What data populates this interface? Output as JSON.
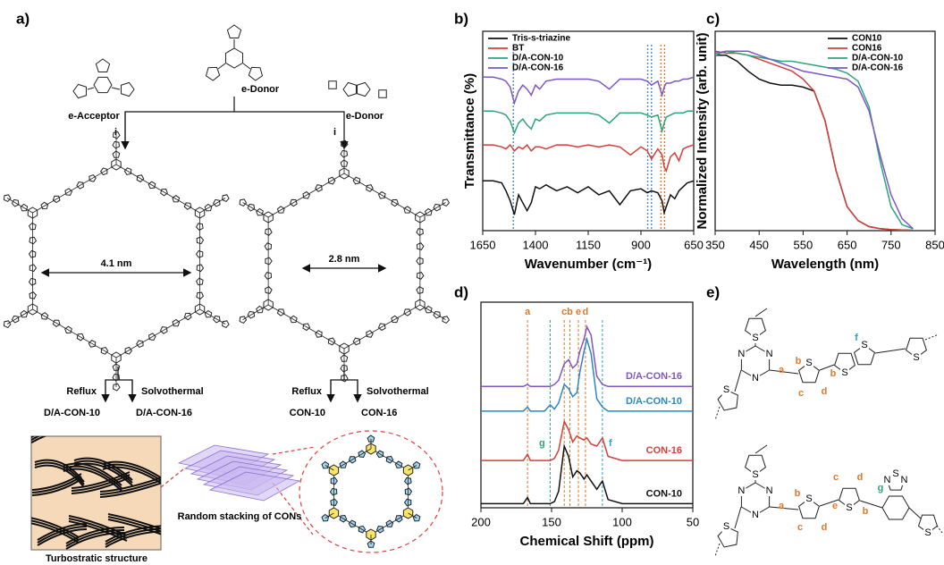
{
  "panels": {
    "a": "a)",
    "b": "b)",
    "c": "c)",
    "d": "d)",
    "e": "e)"
  },
  "scheme": {
    "acceptor": "e-Acceptor",
    "donor_center": "e-Donor",
    "donor_right": "e-Donor",
    "step_left": "i",
    "step_right": "i",
    "pore_left": "4.1 nm",
    "pore_right": "2.8 nm",
    "left_conditions": [
      "Reflux",
      "Solvothermal"
    ],
    "left_products": [
      "D/A-CON-10",
      "D/A-CON-16"
    ],
    "right_conditions": [
      "Reflux",
      "Solvothermal"
    ],
    "right_products": [
      "CON-10",
      "CON-16"
    ],
    "stacking": "Random stacking of CONs",
    "turbostratic": "Turbostratic structure"
  },
  "chart_data": [
    {
      "type": "line",
      "xlabel": "Wavenumber (cm⁻¹)",
      "ylabel": "Transmittance (%)",
      "xlim": [
        1650,
        650
      ],
      "xticks": [
        1650,
        1400,
        1150,
        900,
        650
      ],
      "ylim": [
        0,
        100
      ],
      "legend": "upper left",
      "x": [
        1650,
        1600,
        1560,
        1540,
        1520,
        1500,
        1480,
        1460,
        1440,
        1420,
        1400,
        1380,
        1350,
        1300,
        1250,
        1200,
        1150,
        1100,
        1050,
        1000,
        950,
        900,
        870,
        850,
        820,
        800,
        790,
        780,
        760,
        740,
        720,
        700,
        680,
        650
      ],
      "series": [
        {
          "name": "Tris-s-triazine",
          "color": "#111111",
          "values": [
            25,
            25,
            24,
            20,
            15,
            8,
            18,
            14,
            10,
            14,
            22,
            21,
            23,
            20,
            22,
            19,
            22,
            18,
            20,
            13,
            20,
            21,
            19,
            20,
            19,
            15,
            9,
            12,
            18,
            16,
            20,
            22,
            24,
            25
          ]
        },
        {
          "name": "BT",
          "color": "#d43f3a",
          "values": [
            43,
            43,
            42,
            41,
            43,
            40,
            42,
            41,
            43,
            40,
            42,
            42,
            41,
            43,
            43,
            42,
            43,
            42,
            43,
            42,
            38,
            42,
            40,
            36,
            41,
            38,
            32,
            30,
            37,
            39,
            35,
            41,
            42,
            43
          ]
        },
        {
          "name": "D/A-CON-10",
          "color": "#2aa57f",
          "values": [
            60,
            60,
            59,
            58,
            55,
            49,
            54,
            56,
            53,
            51,
            56,
            55,
            58,
            59,
            59,
            59,
            59,
            58,
            54,
            59,
            59,
            59,
            58,
            57,
            58,
            50,
            54,
            57,
            58,
            59,
            59,
            59,
            60,
            60
          ]
        },
        {
          "name": "D/A-CON-16",
          "color": "#7e57c2",
          "values": [
            77,
            77,
            76,
            75,
            72,
            64,
            70,
            73,
            71,
            68,
            73,
            71,
            75,
            76,
            76,
            76,
            76,
            75,
            71,
            76,
            76,
            76,
            75,
            73,
            75,
            68,
            72,
            74,
            74,
            75,
            75,
            76,
            76,
            77
          ]
        }
      ],
      "vlines": [
        {
          "x": 1505,
          "color": "#3f8fd6"
        },
        {
          "x": 868,
          "color": "#3f8fd6"
        },
        {
          "x": 850,
          "color": "#3f8fd6"
        },
        {
          "x": 805,
          "color": "#e0782c"
        },
        {
          "x": 788,
          "color": "#e0782c"
        }
      ]
    },
    {
      "type": "line",
      "xlabel": "Wavelength (nm)",
      "ylabel": "Normalized Intensity (arb. unit)",
      "xlim": [
        350,
        850
      ],
      "xticks": [
        350,
        450,
        550,
        650,
        750,
        850
      ],
      "ylim": [
        0,
        100
      ],
      "legend": "upper right",
      "x": [
        350,
        375,
        400,
        425,
        450,
        475,
        500,
        525,
        550,
        575,
        600,
        625,
        650,
        675,
        700,
        725,
        750,
        775,
        800
      ],
      "series": [
        {
          "name": "CON10",
          "color": "#111111",
          "values": [
            88,
            88,
            85,
            80,
            76,
            74,
            73,
            73,
            72,
            70,
            55,
            30,
            12,
            5,
            2,
            1,
            0.5,
            0.3,
            0.2
          ]
        },
        {
          "name": "CON16",
          "color": "#d43f3a",
          "values": [
            90,
            89,
            89,
            88,
            86,
            84,
            82,
            80,
            76,
            70,
            55,
            30,
            12,
            5,
            2,
            1,
            0.5,
            0.3,
            0.2
          ]
        },
        {
          "name": "D/A-CON-10",
          "color": "#2aa57f",
          "values": [
            88,
            90,
            89,
            88,
            87,
            86,
            85,
            85,
            84,
            83,
            82,
            81,
            79,
            75,
            62,
            35,
            12,
            3,
            1
          ]
        },
        {
          "name": "D/A-CON-16",
          "color": "#7e57c2",
          "values": [
            89,
            90,
            90,
            90,
            88,
            86,
            84,
            82,
            80,
            79,
            78,
            77,
            76,
            72,
            60,
            38,
            18,
            6,
            1
          ]
        }
      ]
    },
    {
      "type": "line",
      "xlabel": "Chemical Shift (ppm)",
      "xlim": [
        200,
        50
      ],
      "xticks": [
        200,
        150,
        100,
        50
      ],
      "ylim": [
        0,
        100
      ],
      "legend": "inline",
      "x": [
        200,
        190,
        180,
        170,
        167,
        165,
        160,
        155,
        151,
        148,
        145,
        141,
        138,
        135,
        132,
        130,
        127,
        125,
        122,
        118,
        114,
        110,
        100,
        90,
        80,
        70,
        60,
        50
      ],
      "series": [
        {
          "name": "CON-10",
          "color": "#111111",
          "values": [
            2,
            2,
            2,
            2,
            5,
            2,
            2,
            2,
            2,
            3,
            8,
            30,
            25,
            15,
            18,
            17,
            14,
            16,
            13,
            9,
            13,
            4,
            2,
            2,
            2,
            2,
            2,
            2
          ]
        },
        {
          "name": "CON-16",
          "color": "#d43f3a",
          "values": [
            23,
            23,
            23,
            23,
            26,
            23,
            23,
            23,
            23,
            24,
            28,
            42,
            38,
            32,
            35,
            34,
            33,
            34,
            31,
            30,
            34,
            25,
            23,
            23,
            23,
            23,
            23,
            23
          ]
        },
        {
          "name": "D/A-CON-10",
          "color": "#2b86c5",
          "values": [
            47,
            47,
            47,
            47,
            49,
            47,
            47,
            47,
            50,
            48,
            51,
            60,
            58,
            54,
            56,
            66,
            76,
            82,
            75,
            53,
            49,
            47,
            47,
            47,
            47,
            47,
            47,
            47
          ]
        },
        {
          "name": "D/A-CON-16",
          "color": "#7e57c2",
          "values": [
            59,
            59,
            59,
            59,
            60,
            59,
            59,
            59,
            59,
            60,
            62,
            70,
            72,
            68,
            70,
            76,
            82,
            88,
            84,
            64,
            60,
            59,
            59,
            59,
            59,
            59,
            59,
            59
          ]
        }
      ],
      "peak_labels": [
        {
          "label": "a",
          "x": 167,
          "color": "#e0782c"
        },
        {
          "label": "c",
          "x": 141,
          "color": "#e0782c"
        },
        {
          "label": "b",
          "x": 137,
          "color": "#e0782c"
        },
        {
          "label": "e",
          "x": 131,
          "color": "#e0782c"
        },
        {
          "label": "d",
          "x": 126,
          "color": "#e0782c"
        }
      ],
      "side_labels": [
        {
          "label": "g",
          "x": 151,
          "color": "#2aa57f"
        },
        {
          "label": "f",
          "x": 114,
          "color": "#29a3d6"
        }
      ]
    }
  ],
  "structures": {
    "top_labels": [
      {
        "text": "a",
        "color": "#e0782c"
      },
      {
        "text": "b",
        "color": "#e0782c"
      },
      {
        "text": "c",
        "color": "#e0782c"
      },
      {
        "text": "d",
        "color": "#e0782c"
      },
      {
        "text": "f",
        "color": "#29a3d6"
      },
      {
        "text": "b",
        "color": "#e0782c"
      }
    ],
    "bottom_labels": [
      {
        "text": "a",
        "color": "#e0782c"
      },
      {
        "text": "b",
        "color": "#e0782c"
      },
      {
        "text": "c",
        "color": "#e0782c"
      },
      {
        "text": "d",
        "color": "#e0782c"
      },
      {
        "text": "e",
        "color": "#e0782c"
      },
      {
        "text": "c",
        "color": "#e0782c"
      },
      {
        "text": "d",
        "color": "#e0782c"
      },
      {
        "text": "b",
        "color": "#e0782c"
      },
      {
        "text": "g",
        "color": "#2aa57f"
      }
    ],
    "top_atoms": [
      "N",
      "N",
      "N",
      "S",
      "S",
      "S",
      "S",
      "S",
      "S"
    ],
    "bottom_atoms": [
      "N",
      "N",
      "N",
      "S",
      "S",
      "S",
      "S",
      "N",
      "S",
      "N",
      "S"
    ]
  }
}
